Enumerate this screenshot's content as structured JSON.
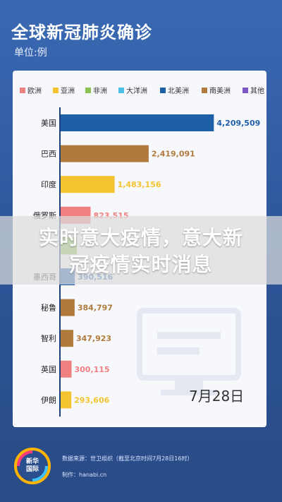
{
  "header": {
    "title": "全球新冠肺炎确诊",
    "unit": "单位:例"
  },
  "overlay": {
    "line1": "实时意大疫情，意大新",
    "line2": "冠疫情实时消息"
  },
  "date_label": "7月28日",
  "footer": {
    "logo_line1": "新华",
    "logo_line2": "国际",
    "source": "数据来源：世卫组织（截至北京时间7月28日16时）",
    "maker": "制作：hanabi.cn"
  },
  "chart_data": {
    "type": "bar",
    "orientation": "horizontal",
    "title": "全球新冠肺炎确诊",
    "unit": "单位:例",
    "legend": [
      {
        "name": "欧洲",
        "color": "#f08080"
      },
      {
        "name": "亚洲",
        "color": "#f4c430"
      },
      {
        "name": "非洲",
        "color": "#8cc152"
      },
      {
        "name": "大洋洲",
        "color": "#4fc1e9"
      },
      {
        "name": "北美洲",
        "color": "#1f5fa8"
      },
      {
        "name": "南美洲",
        "color": "#b07a3c"
      },
      {
        "name": "其他",
        "color": "#7e57c2"
      }
    ],
    "categories": [
      "美国",
      "巴西",
      "印度",
      "俄罗斯",
      "",
      "墨西哥",
      "秘鲁",
      "智利",
      "英国",
      "伊朗"
    ],
    "values": [
      4209509,
      2419091,
      1483156,
      823515,
      445433,
      390516,
      384797,
      347923,
      300115,
      293606
    ],
    "value_labels": [
      "4,209,509",
      "2,419,091",
      "1,483,156",
      "823,515",
      "",
      "390,516",
      "384,797",
      "347,923",
      "300,115",
      "293,606"
    ],
    "colors": [
      "#1f5fa8",
      "#b07a3c",
      "#f4c430",
      "#f08080",
      "#8cc152",
      "#1f5fa8",
      "#b07a3c",
      "#b07a3c",
      "#f08080",
      "#f4c430"
    ],
    "xlim": [
      0,
      4300000
    ],
    "grid": false,
    "legend_position": "top"
  }
}
